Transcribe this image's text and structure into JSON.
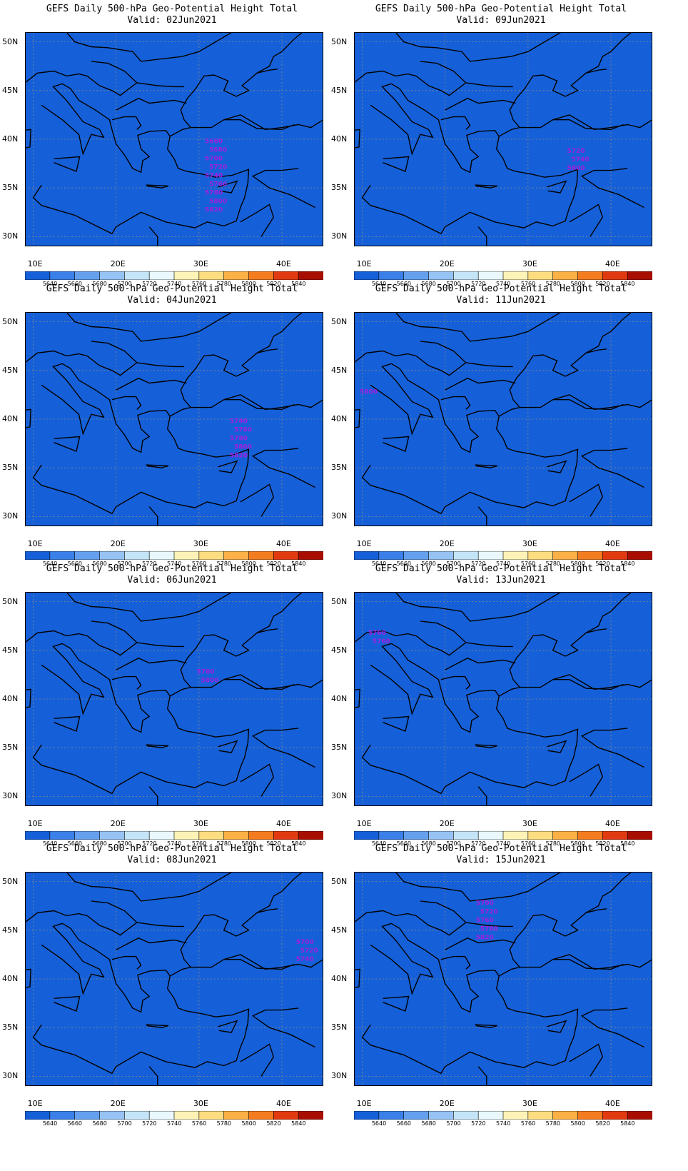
{
  "palette": [
    "#1560d8",
    "#3a80e8",
    "#64a0ee",
    "#96c2f4",
    "#c4e4f8",
    "#e8f8fc",
    "#fdf3b6",
    "#fddd80",
    "#fcb046",
    "#f47c20",
    "#e23a10",
    "#a80e00"
  ],
  "colorbar_labels": [
    "5640",
    "5660",
    "5680",
    "5700",
    "5720",
    "5740",
    "5760",
    "5780",
    "5800",
    "5820",
    "5840"
  ],
  "axes": {
    "xticks": [
      "10E",
      "20E",
      "30E",
      "40E"
    ],
    "yticks": [
      "50N",
      "45N",
      "40N",
      "35N",
      "30N"
    ]
  },
  "chart_data": [
    {
      "type": "heatmap",
      "title": "GEFS Daily 500-hPa Geo-Potential Height Total",
      "subtitle": "Valid: 02Jun2021",
      "xlim": [
        9,
        45
      ],
      "ylim": [
        29,
        51
      ],
      "low_center": {
        "lon": 32,
        "lat": 44
      },
      "contour_labels": [
        "5660",
        "5680",
        "5700",
        "5720",
        "5740",
        "5760",
        "5780",
        "5800",
        "5820"
      ]
    },
    {
      "type": "heatmap",
      "title": "GEFS Daily 500-hPa Geo-Potential Height Total",
      "subtitle": "Valid: 09Jun2021",
      "xlim": [
        9,
        45
      ],
      "ylim": [
        29,
        51
      ],
      "low_center": {
        "lon": 36,
        "lat": 43
      },
      "contour_labels": [
        "5720",
        "5740",
        "5800"
      ]
    },
    {
      "type": "heatmap",
      "title": "GEFS Daily 500-hPa Geo-Potential Height Total",
      "subtitle": "Valid: 04Jun2021",
      "xlim": [
        9,
        45
      ],
      "ylim": [
        29,
        51
      ],
      "low_center": {
        "lon": 35,
        "lat": 44
      },
      "contour_labels": [
        "5740",
        "5760",
        "5780",
        "5800",
        "5820"
      ]
    },
    {
      "type": "heatmap",
      "title": "GEFS Daily 500-hPa Geo-Potential Height Total",
      "subtitle": "Valid: 11Jun2021",
      "xlim": [
        9,
        45
      ],
      "ylim": [
        29,
        51
      ],
      "low_center": {
        "lon": 10,
        "lat": 47
      },
      "contour_labels": [
        "5800"
      ]
    },
    {
      "type": "heatmap",
      "title": "GEFS Daily 500-hPa Geo-Potential Height Total",
      "subtitle": "Valid: 06Jun2021",
      "xlim": [
        9,
        45
      ],
      "ylim": [
        29,
        51
      ],
      "low_center": {
        "lon": 31,
        "lat": 47
      },
      "contour_labels": [
        "5780",
        "5800"
      ]
    },
    {
      "type": "heatmap",
      "title": "GEFS Daily 500-hPa Geo-Potential Height Total",
      "subtitle": "Valid: 13Jun2021",
      "xlim": [
        9,
        45
      ],
      "ylim": [
        29,
        51
      ],
      "low_center": {
        "lon": 12,
        "lat": 51
      },
      "contour_labels": [
        "5760",
        "5760"
      ]
    },
    {
      "type": "heatmap",
      "title": "GEFS Daily 500-hPa Geo-Potential Height Total",
      "subtitle": "Valid: 08Jun2021",
      "xlim": [
        9,
        45
      ],
      "ylim": [
        29,
        51
      ],
      "low_center": {
        "lon": 43,
        "lat": 48
      },
      "contour_labels": [
        "5700",
        "5720",
        "5740"
      ]
    },
    {
      "type": "heatmap",
      "title": "GEFS Daily 500-hPa Geo-Potential Height Total",
      "subtitle": "Valid: 15Jun2021",
      "xlim": [
        9,
        45
      ],
      "ylim": [
        29,
        51
      ],
      "low_center": {
        "lon": 25,
        "lat": 52
      },
      "contour_labels": [
        "5700",
        "5720",
        "5760",
        "5780",
        "5820"
      ]
    }
  ]
}
